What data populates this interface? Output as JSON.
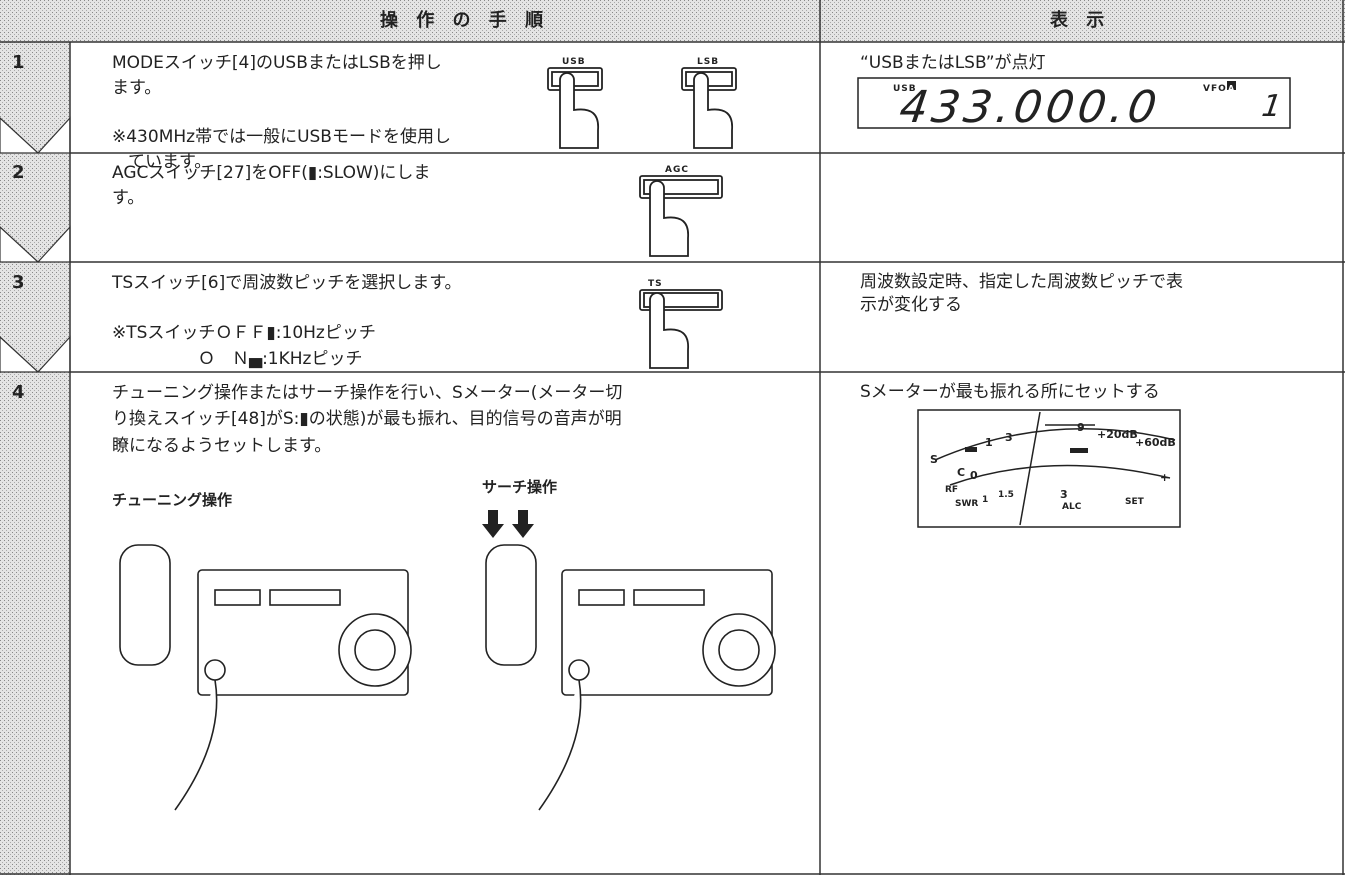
{
  "header": {
    "procedure": "操 作 の 手 順",
    "display": "表 示"
  },
  "steps": [
    {
      "number": "1",
      "lines": [
        "MODEスイッチ[4]のUSBまたはLSBを押し",
        "ます。",
        "※430MHz帯では一般にUSBモードを使用し",
        "ています。"
      ],
      "buttons": [
        "USB",
        "LSB"
      ],
      "display": {
        "caption": "“USBまたはLSB”が点灯",
        "lcd": {
          "mode": "USB",
          "vfo": "VFO",
          "vfo_mark": "A",
          "frequency": "433.000.0",
          "channel": "1"
        }
      }
    },
    {
      "number": "2",
      "lines": [
        "AGCスイッチ[27]をOFF(▮:SLOW)にしま",
        "す。"
      ],
      "buttons": [
        "AGC"
      ]
    },
    {
      "number": "3",
      "lines": [
        "TSスイッチ[6]で周波数ピッチを選択します。",
        "※TSスイッチＯＦＦ▮:10Hzピッチ",
        "Ｏ　Ｎ▄:1KHzピッチ"
      ],
      "buttons": [
        "TS"
      ],
      "display": {
        "caption_lines": [
          "周波数設定時、指定した周波数ピッチで表",
          "示が変化する"
        ]
      }
    },
    {
      "number": "4",
      "lines": [
        "チューニング操作またはサーチ操作を行い、Sメーター(メーター切",
        "り換えスイッチ[48]がS:▮の状態)が最も振れ、目的信号の音声が明",
        "瞭になるようセットします。"
      ],
      "figures": [
        "チューニング操作",
        "サーチ操作"
      ],
      "display": {
        "caption": "Sメーターが最も振れる所にセットする",
        "meter": {
          "s": "S",
          "s1": "1",
          "s3": "3",
          "s9": "9",
          "db20": "+20dB",
          "db60": "+60dB",
          "c": "C",
          "rf": "RF",
          "zero": "0",
          "swr": "SWR",
          "swr1": "1",
          "swr15": "1.5",
          "alc3": "3",
          "alc": "ALC",
          "set": "SET",
          "plus": "+"
        }
      }
    }
  ]
}
